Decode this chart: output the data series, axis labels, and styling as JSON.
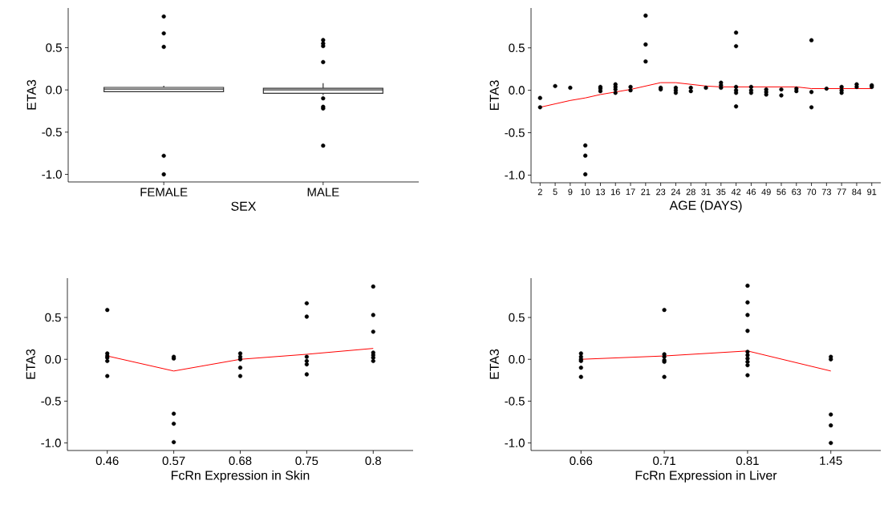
{
  "chart_data": [
    {
      "type": "box",
      "xlabel": "SEX",
      "ylabel": "ETA3",
      "categories": [
        "FEMALE",
        "MALE"
      ],
      "color": "#333333",
      "boxes": [
        {
          "low": -0.02,
          "q1": -0.02,
          "median": 0.01,
          "q3": 0.03,
          "high": 0.05,
          "outliers": [
            0.87,
            0.67,
            0.51,
            -0.78,
            -1.0
          ]
        },
        {
          "low": -0.06,
          "q1": -0.04,
          "median": 0.0,
          "q3": 0.02,
          "high": 0.08,
          "outliers": [
            0.59,
            0.55,
            0.52,
            0.33,
            -0.1,
            -0.2,
            -0.22,
            -0.66
          ]
        }
      ],
      "ylim": [
        -1.09,
        0.97
      ],
      "yticks": [
        {
          "value": -1.0,
          "label": "-1.0"
        },
        {
          "value": -0.5,
          "label": "-0.5"
        },
        {
          "value": 0.0,
          "label": "0.0"
        },
        {
          "value": 0.5,
          "label": "0.5"
        }
      ]
    },
    {
      "type": "scatter",
      "xlabel": "AGE (DAYS)",
      "ylabel": "ETA3",
      "categories": [
        "2",
        "5",
        "9",
        "10",
        "13",
        "16",
        "17",
        "21",
        "23",
        "24",
        "28",
        "31",
        "35",
        "42",
        "46",
        "49",
        "56",
        "63",
        "70",
        "73",
        "77",
        "84",
        "91"
      ],
      "series": [
        {
          "type": "scatter",
          "color": "#000000",
          "marker": "circle",
          "x": [
            "2",
            "2",
            "5",
            "9",
            "10",
            "10",
            "10",
            "13",
            "13",
            "13",
            "16",
            "16",
            "16",
            "16",
            "17",
            "17",
            "21",
            "21",
            "21",
            "23",
            "23",
            "24",
            "24",
            "24",
            "28",
            "28",
            "31",
            "35",
            "35",
            "35",
            "42",
            "42",
            "42",
            "42",
            "42",
            "42",
            "46",
            "46",
            "46",
            "49",
            "49",
            "49",
            "56",
            "56",
            "63",
            "63",
            "70",
            "70",
            "70",
            "73",
            "77",
            "77",
            "77",
            "84",
            "84",
            "91",
            "91"
          ],
          "values": [
            -0.09,
            -0.2,
            0.05,
            0.03,
            -0.65,
            -0.77,
            -0.99,
            0.04,
            0.02,
            -0.01,
            0.07,
            0.04,
            0.01,
            -0.03,
            0.04,
            0.0,
            0.88,
            0.54,
            0.34,
            0.03,
            0.01,
            0.03,
            0.0,
            -0.03,
            0.03,
            -0.01,
            0.03,
            0.09,
            0.06,
            0.03,
            0.68,
            0.52,
            0.04,
            0.0,
            -0.03,
            -0.19,
            0.04,
            0.0,
            -0.03,
            0.01,
            -0.02,
            -0.05,
            0.01,
            -0.06,
            0.02,
            -0.01,
            0.59,
            -0.02,
            -0.2,
            0.02,
            0.04,
            0.0,
            -0.03,
            0.07,
            0.04,
            0.06,
            0.04
          ]
        },
        {
          "type": "line",
          "color": "#ff0000",
          "marker": "none",
          "values": [
            -0.2,
            -0.16,
            -0.12,
            -0.09,
            -0.05,
            -0.02,
            0.01,
            0.05,
            0.09,
            0.09,
            0.07,
            0.05,
            0.04,
            0.04,
            0.04,
            0.04,
            0.04,
            0.04,
            0.02,
            0.02,
            0.02,
            0.02,
            0.02
          ]
        }
      ],
      "ylim": [
        -1.09,
        0.97
      ],
      "yticks": [
        {
          "value": -1.0,
          "label": "-1.0"
        },
        {
          "value": -0.5,
          "label": "-0.5"
        },
        {
          "value": 0.0,
          "label": "0.0"
        },
        {
          "value": 0.5,
          "label": "0.5"
        }
      ]
    },
    {
      "type": "scatter",
      "xlabel": "FcRn Expression in Skin",
      "ylabel": "ETA3",
      "categories": [
        "0.46",
        "0.57",
        "0.68",
        "0.75",
        "0.8"
      ],
      "series": [
        {
          "type": "scatter",
          "color": "#000000",
          "marker": "circle",
          "x": [
            "0.46",
            "0.46",
            "0.46",
            "0.46",
            "0.46",
            "0.46",
            "0.57",
            "0.57",
            "0.57",
            "0.57",
            "0.57",
            "0.68",
            "0.68",
            "0.68",
            "0.68",
            "0.68",
            "0.75",
            "0.75",
            "0.75",
            "0.75",
            "0.75",
            "0.75",
            "0.8",
            "0.8",
            "0.8",
            "0.8",
            "0.8",
            "0.8",
            "0.8"
          ],
          "values": [
            0.59,
            0.07,
            0.04,
            0.02,
            -0.02,
            -0.2,
            0.03,
            0.01,
            -0.65,
            -0.77,
            -0.99,
            0.07,
            0.03,
            0.0,
            -0.1,
            -0.2,
            0.67,
            0.51,
            0.03,
            -0.02,
            -0.06,
            -0.18,
            0.87,
            0.53,
            0.33,
            0.08,
            0.05,
            0.02,
            -0.02
          ]
        },
        {
          "type": "line",
          "color": "#ff0000",
          "marker": "none",
          "values": [
            0.04,
            -0.14,
            0.0,
            0.06,
            0.13
          ]
        }
      ],
      "ylim": [
        -1.09,
        0.97
      ],
      "yticks": [
        {
          "value": -1.0,
          "label": "-1.0"
        },
        {
          "value": -0.5,
          "label": "-0.5"
        },
        {
          "value": 0.0,
          "label": "0.0"
        },
        {
          "value": 0.5,
          "label": "0.5"
        }
      ]
    },
    {
      "type": "scatter",
      "xlabel": "FcRn Expression in Liver",
      "ylabel": "ETA3",
      "categories": [
        "0.66",
        "0.71",
        "0.81",
        "1.45"
      ],
      "series": [
        {
          "type": "scatter",
          "color": "#000000",
          "marker": "circle",
          "x": [
            "0.66",
            "0.66",
            "0.66",
            "0.66",
            "0.66",
            "0.66",
            "0.71",
            "0.71",
            "0.71",
            "0.71",
            "0.71",
            "0.71",
            "0.81",
            "0.81",
            "0.81",
            "0.81",
            "0.81",
            "0.81",
            "0.81",
            "0.81",
            "0.81",
            "0.81",
            "1.45",
            "1.45",
            "1.45",
            "1.45",
            "1.45"
          ],
          "values": [
            0.07,
            0.03,
            0.0,
            -0.02,
            -0.1,
            -0.21,
            0.59,
            0.06,
            0.03,
            -0.01,
            -0.03,
            -0.21,
            0.88,
            0.68,
            0.53,
            0.34,
            0.09,
            0.05,
            0.01,
            -0.03,
            -0.07,
            -0.19,
            0.03,
            0.0,
            -0.66,
            -0.79,
            -1.0
          ]
        },
        {
          "type": "line",
          "color": "#ff0000",
          "marker": "none",
          "values": [
            0.0,
            0.04,
            0.1,
            -0.14
          ]
        }
      ],
      "ylim": [
        -1.09,
        0.97
      ],
      "yticks": [
        {
          "value": -1.0,
          "label": "-1.0"
        },
        {
          "value": -0.5,
          "label": "-0.5"
        },
        {
          "value": 0.0,
          "label": "0.0"
        },
        {
          "value": 0.5,
          "label": "0.5"
        }
      ]
    }
  ]
}
